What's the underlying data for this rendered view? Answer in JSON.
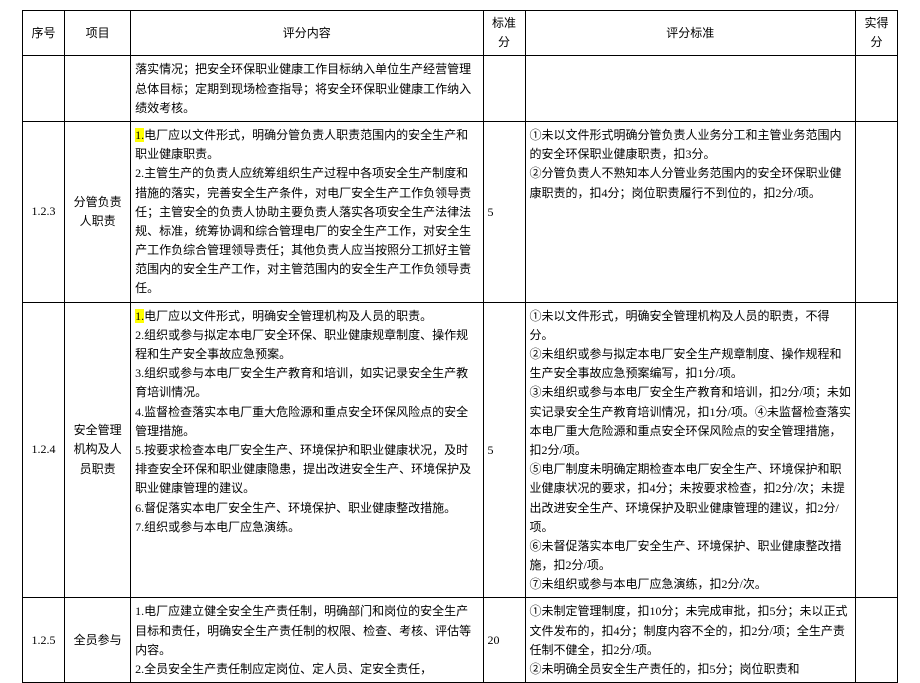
{
  "headers": {
    "seq": "序号",
    "item": "项目",
    "content": "评分内容",
    "std_score": "标准分",
    "criteria": "评分标准",
    "actual": "实得分"
  },
  "rows": [
    {
      "seq": "",
      "item": "",
      "content_pre": "",
      "content_hl": "",
      "content_post": "落实情况；把安全环保职业健康工作目标纳入单位生产经营管理总体目标；定期到现场检查指导；将安全环保职业健康工作纳入绩效考核。",
      "score": "",
      "criteria": ""
    },
    {
      "seq": "1.2.3",
      "item": "分管负责人职责",
      "content_pre": "",
      "content_hl": "1.",
      "content_post": "电厂应以文件形式，明确分管负责人职责范围内的安全生产和职业健康职责。\n2.主管生产的负责人应统筹组织生产过程中各项安全生产制度和措施的落实，完善安全生产条件，对电厂安全生产工作负领导责任；主管安全的负责人协助主要负责人落实各项安全生产法律法规、标准，统筹协调和综合管理电厂的安全生产工作，对安全生产工作负综合管理领导责任；其他负责人应当按照分工抓好主管范围内的安全生产工作，对主管范围内的安全生产工作负领导责任。",
      "score": "5",
      "criteria": "①未以文件形式明确分管负责人业务分工和主管业务范围内的安全环保职业健康职责，扣3分。\n②分管负责人不熟知本人分管业务范围内的安全环保职业健康职责的，扣4分；岗位职责履行不到位的，扣2分/项。"
    },
    {
      "seq": "1.2.4",
      "item": "安全管理机构及人员职责",
      "content_pre": "",
      "content_hl": "1.",
      "content_post": "电厂应以文件形式，明确安全管理机构及人员的职责。\n2.组织或参与拟定本电厂安全环保、职业健康规章制度、操作规程和生产安全事故应急预案。\n3.组织或参与本电厂安全生产教育和培训，如实记录安全生产教育培训情况。\n4.监督检查落实本电厂重大危险源和重点安全环保风险点的安全管理措施。\n5.按要求检查本电厂安全生产、环境保护和职业健康状况，及时排查安全环保和职业健康隐患，提出改进安全生产、环境保护及职业健康管理的建议。\n6.督促落实本电厂安全生产、环境保护、职业健康整改措施。\n7.组织或参与本电厂应急演练。",
      "score": "5",
      "criteria": "①未以文件形式，明确安全管理机构及人员的职责，不得分。\n②未组织或参与拟定本电厂安全生产规章制度、操作规程和生产安全事故应急预案编写，扣1分/项。\n③未组织或参与本电厂安全生产教育和培训，扣2分/项；未如实记录安全生产教育培训情况，扣1分/项。④未监督检查落实本电厂重大危险源和重点安全环保风险点的安全管理措施，扣2分/项。\n⑤电厂制度未明确定期检查本电厂安全生产、环境保护和职业健康状况的要求，扣4分；未按要求检查，扣2分/次；未提出改进安全生产、环境保护及职业健康管理的建议，扣2分/项。\n⑥未督促落实本电厂安全生产、环境保护、职业健康整改措施，扣2分/项。\n⑦未组织或参与本电厂应急演练，扣2分/次。"
    },
    {
      "seq": "1.2.5",
      "item": "全员参与",
      "content_pre": "1.电厂应建立健全安全生产责任制，明确部门和岗位的安全生产目标和责任，明确安全生产责任制的权限、检查、考核、评估等内容。\n2.全员安全生产责任制应定岗位、定人员、定安全责任，",
      "content_hl": "",
      "content_post": "",
      "score": "20",
      "criteria": "①未制定管理制度，扣10分；未完成审批，扣5分；未以正式文件发布的，扣4分；制度内容不全的，扣2分/项；全生产责任制不健全，扣2分/项。\n②未明确全员安全生产责任的，扣5分；岗位职责和"
    }
  ]
}
